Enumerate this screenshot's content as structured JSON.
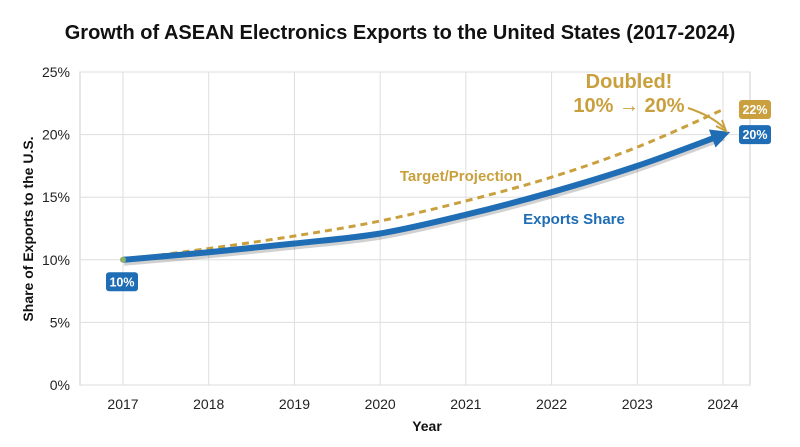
{
  "chart_data": {
    "type": "line",
    "title": "Growth of ASEAN Electronics Exports to the United States (2017-2024)",
    "xlabel": "Year",
    "ylabel": "Share of Exports to the U.S.",
    "x": [
      2017,
      2018,
      2019,
      2020,
      2021,
      2022,
      2023,
      2024
    ],
    "xlim": [
      2017,
      2024
    ],
    "ylim": [
      0,
      25
    ],
    "y_ticks": [
      0,
      5,
      10,
      15,
      20,
      25
    ],
    "y_tick_labels": [
      "0%",
      "5%",
      "10%",
      "15%",
      "20%",
      "25%"
    ],
    "x_tick_labels": [
      "2017",
      "2018",
      "2019",
      "2020",
      "2021",
      "2022",
      "2023",
      "2024"
    ],
    "grid": true,
    "series": [
      {
        "name": "Exports Share",
        "style": "solid",
        "color": "#1f6db4",
        "values": [
          10,
          10.6,
          11.3,
          12.1,
          13.6,
          15.4,
          17.5,
          20
        ],
        "label": "Exports Share",
        "start_badge": "10%",
        "end_badge": "20%"
      },
      {
        "name": "Target/Projection",
        "style": "dashed",
        "color": "#c9a03d",
        "values": [
          10,
          10.9,
          11.9,
          13.1,
          14.7,
          16.6,
          19.0,
          22
        ],
        "label": "Target/Projection",
        "end_badge": "22%"
      }
    ],
    "annotations": [
      {
        "lines": [
          "Doubled!",
          "10% → 20%"
        ],
        "color": "#c9a03d"
      }
    ]
  }
}
